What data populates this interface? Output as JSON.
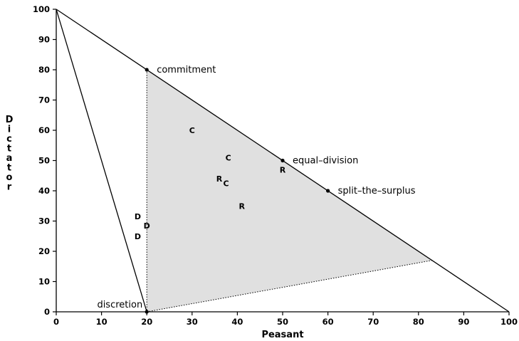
{
  "chart_data": {
    "type": "scatter",
    "xlabel": "Peasant",
    "ylabel": "Dictator",
    "xlim": [
      0,
      100
    ],
    "ylim": [
      0,
      100
    ],
    "x_ticks": [
      0,
      10,
      20,
      30,
      40,
      50,
      60,
      70,
      80,
      90,
      100
    ],
    "y_ticks": [
      0,
      10,
      20,
      30,
      40,
      50,
      60,
      70,
      80,
      90,
      100
    ],
    "grid": false,
    "lines": [
      {
        "name": "frontier",
        "points": [
          [
            0,
            100
          ],
          [
            100,
            0
          ]
        ]
      },
      {
        "name": "discretion-boundary",
        "points": [
          [
            0,
            100
          ],
          [
            20,
            0
          ]
        ]
      },
      {
        "name": "commitment-vertical",
        "points": [
          [
            20,
            80
          ],
          [
            20,
            0
          ]
        ],
        "style": "dotted"
      },
      {
        "name": "lower-boundary",
        "points": [
          [
            20,
            0
          ],
          [
            83,
            17
          ]
        ],
        "style": "dotted"
      }
    ],
    "shaded_region": [
      [
        20,
        80
      ],
      [
        83,
        17
      ],
      [
        20,
        0
      ]
    ],
    "labeled_points": [
      {
        "label": "commitment",
        "x": 20,
        "y": 80
      },
      {
        "label": "equal–division",
        "x": 50,
        "y": 50
      },
      {
        "label": "split–the–surplus",
        "x": 60,
        "y": 40
      },
      {
        "label": "discretion",
        "x": 20,
        "y": 0
      }
    ],
    "markers": [
      {
        "text": "C",
        "x": 30,
        "y": 60
      },
      {
        "text": "C",
        "x": 38,
        "y": 51
      },
      {
        "text": "C",
        "x": 37.5,
        "y": 42.5
      },
      {
        "text": "R",
        "x": 36,
        "y": 44
      },
      {
        "text": "R",
        "x": 50,
        "y": 47
      },
      {
        "text": "R",
        "x": 41,
        "y": 35
      },
      {
        "text": "D",
        "x": 18,
        "y": 31.5
      },
      {
        "text": "D",
        "x": 20,
        "y": 28.5
      },
      {
        "text": "D",
        "x": 18,
        "y": 25
      }
    ]
  }
}
